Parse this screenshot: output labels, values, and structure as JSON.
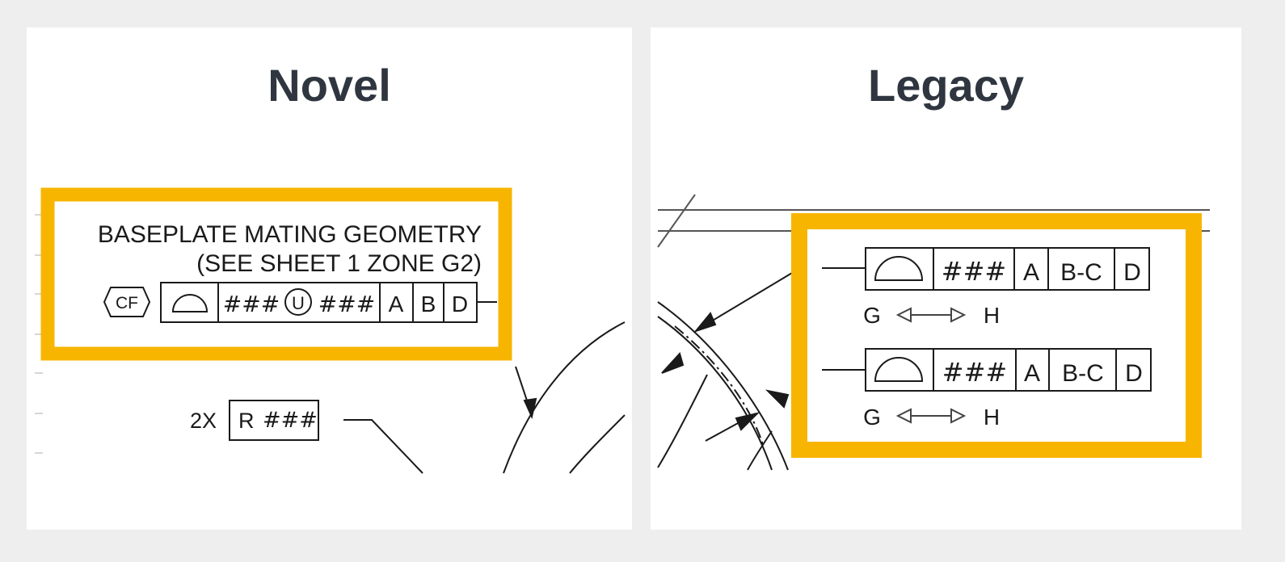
{
  "panels": {
    "novel": {
      "title": "Novel",
      "note_line1": "BASEPLATE MATING GEOMETRY",
      "note_line2": "(SEE SHEET 1 ZONE G2)",
      "cf_label": "CF",
      "fcf": {
        "tolerance1": "###",
        "modifier": "U",
        "tolerance2": "###",
        "datums": [
          "A",
          "B",
          "D"
        ]
      },
      "radius_count": "2X",
      "radius_prefix": "R",
      "radius_value": "###"
    },
    "legacy": {
      "title": "Legacy",
      "fcfs": [
        {
          "tolerance": "###",
          "datums": [
            "A",
            "B-C",
            "D"
          ],
          "between_from": "G",
          "between_to": "H"
        },
        {
          "tolerance": "###",
          "datums": [
            "A",
            "B-C",
            "D"
          ],
          "between_from": "G",
          "between_to": "H"
        }
      ]
    }
  },
  "colors": {
    "highlight": "#f7b500",
    "title": "#2f3640",
    "ink": "#1a1a1a"
  },
  "icons": {
    "profile_symbol": "profile-of-surface-icon",
    "unequal_symbol": "unequally-disposed-icon",
    "between_symbol": "between-arrow-icon",
    "cf_symbol": "continuous-feature-icon"
  }
}
